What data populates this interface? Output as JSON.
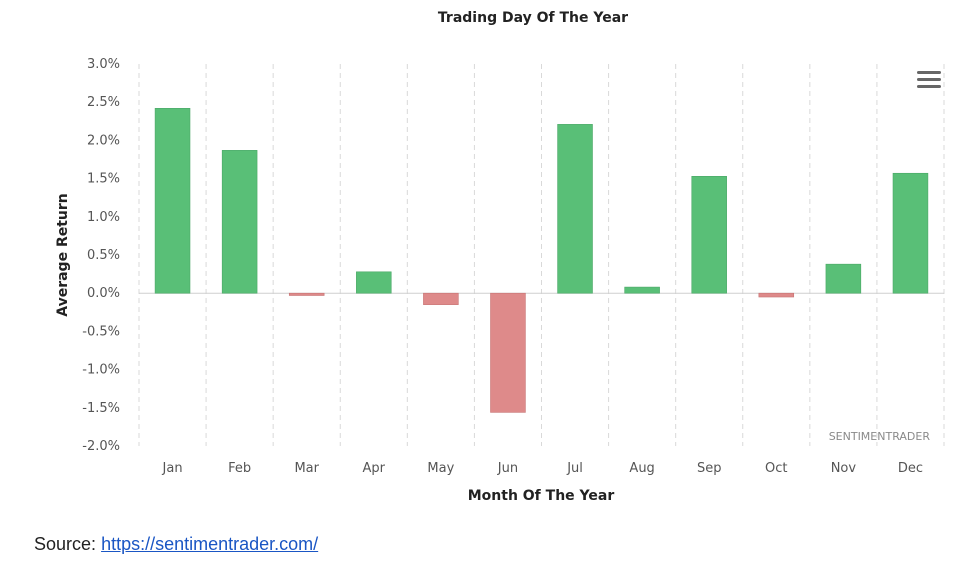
{
  "chart_data": {
    "type": "bar",
    "title": "Trading Day Of The Year",
    "xlabel": "Month Of The Year",
    "ylabel": "Average Return",
    "categories": [
      "Jan",
      "Feb",
      "Mar",
      "Apr",
      "May",
      "Jun",
      "Jul",
      "Aug",
      "Sep",
      "Oct",
      "Nov",
      "Dec"
    ],
    "values": [
      2.42,
      1.87,
      -0.03,
      0.28,
      -0.15,
      -1.56,
      2.21,
      0.08,
      1.53,
      -0.05,
      0.38,
      1.57
    ],
    "ylim": [
      -2.0,
      3.0
    ],
    "yticks": [
      "3.0%",
      "2.5%",
      "2.0%",
      "1.5%",
      "1.0%",
      "0.5%",
      "0.0%",
      "-0.5%",
      "-1.0%",
      "-1.5%",
      "-2.0%"
    ],
    "ytick_values": [
      3.0,
      2.5,
      2.0,
      1.5,
      1.0,
      0.5,
      0.0,
      -0.5,
      -1.0,
      -1.5,
      -2.0
    ],
    "positive_color": "#59bf77",
    "negative_color": "#de8a8a",
    "vertical_grid": "dashed",
    "credit": "SENTIMENTRADER"
  },
  "menu_icon": "hamburger-menu-icon",
  "source": {
    "label": "Source:",
    "link_text": "https://sentimentrader.com/"
  }
}
